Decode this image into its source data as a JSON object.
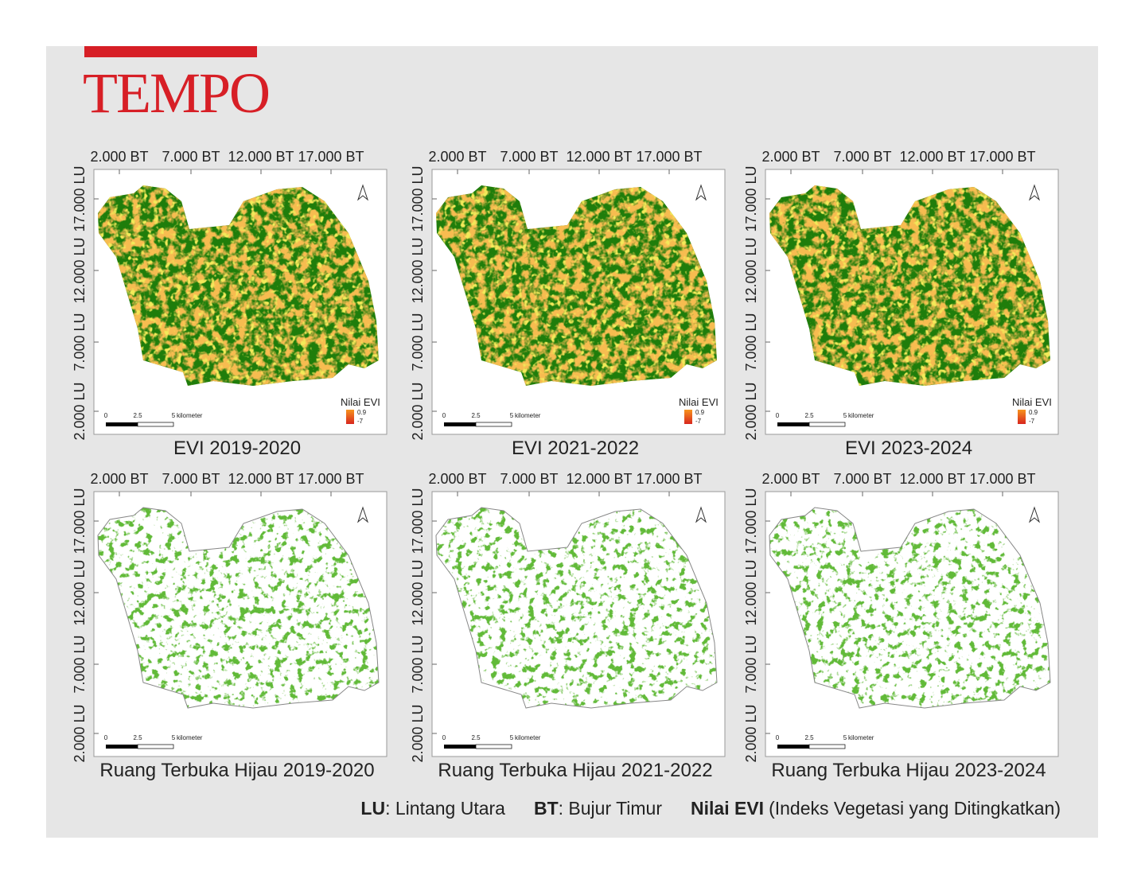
{
  "logo": "TEMPO",
  "axes": {
    "x_labels": [
      "2.000 BT",
      "7.000 BT",
      "12.000 BT",
      "17.000 BT"
    ],
    "y_labels": [
      "2.000 LU",
      "7.000 LU",
      "12.000 LU",
      "17.000 LU"
    ]
  },
  "scale_bar": [
    "0",
    "2.5",
    "5",
    "kilometer"
  ],
  "evi_legend": {
    "title": "Nilai EVI",
    "max": "0.9",
    "min": "-7"
  },
  "panels": [
    {
      "type": "evi",
      "title": "EVI 2019-2020"
    },
    {
      "type": "evi",
      "title": "EVI 2021-2022"
    },
    {
      "type": "evi",
      "title": "EVI 2023-2024"
    },
    {
      "type": "rth",
      "title": "Ruang Terbuka Hijau 2019-2020"
    },
    {
      "type": "rth",
      "title": "Ruang Terbuka Hijau 2021-2022"
    },
    {
      "type": "rth",
      "title": "Ruang Terbuka Hijau 2023-2024"
    }
  ],
  "footer": [
    {
      "term": "LU",
      "definition": ": Lintang Utara"
    },
    {
      "term": "BT",
      "definition": ": Bujur Timur"
    },
    {
      "term": "Nilai EVI",
      "definition": "(Indeks Vegetasi yang Ditingkatkan)"
    }
  ]
}
